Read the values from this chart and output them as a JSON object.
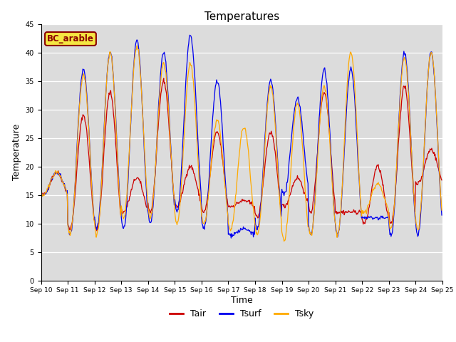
{
  "title": "Temperatures",
  "xlabel": "Time",
  "ylabel": "Temperature",
  "location_label": "BC_arable",
  "ylim": [
    0,
    45
  ],
  "yticks": [
    0,
    5,
    10,
    15,
    20,
    25,
    30,
    35,
    40,
    45
  ],
  "colors": {
    "Tair": "#cc0000",
    "Tsurf": "#0000ee",
    "Tsky": "#ffaa00"
  },
  "background_color": "#dcdcdc",
  "fig_background": "#ffffff",
  "start_day": 10,
  "end_day": 25,
  "n_days": 15,
  "points_per_day": 48,
  "tair_peaks": [
    19,
    29,
    33,
    18,
    35,
    20,
    26,
    14,
    26,
    18,
    33,
    12,
    20,
    34,
    23,
    23
  ],
  "tair_mins": [
    15,
    9,
    9,
    12,
    12,
    13,
    12,
    13,
    11,
    13,
    12,
    12,
    10,
    10,
    17,
    17
  ],
  "tsurf_peaks": [
    19,
    37,
    40,
    42,
    40,
    43,
    35,
    9,
    35,
    32,
    37,
    37,
    11,
    40,
    40,
    23
  ],
  "tsurf_mins": [
    15,
    8,
    9,
    9,
    10,
    12,
    9,
    8,
    9,
    15,
    8,
    8,
    11,
    8,
    8,
    17
  ],
  "tsky_peaks": [
    19,
    36,
    40,
    41,
    38,
    38,
    28,
    27,
    34,
    31,
    34,
    40,
    17,
    39,
    40,
    23
  ],
  "tsky_mins": [
    15,
    8,
    8,
    11,
    11,
    10,
    10,
    9,
    8,
    7,
    8,
    8,
    12,
    9,
    9,
    19
  ]
}
